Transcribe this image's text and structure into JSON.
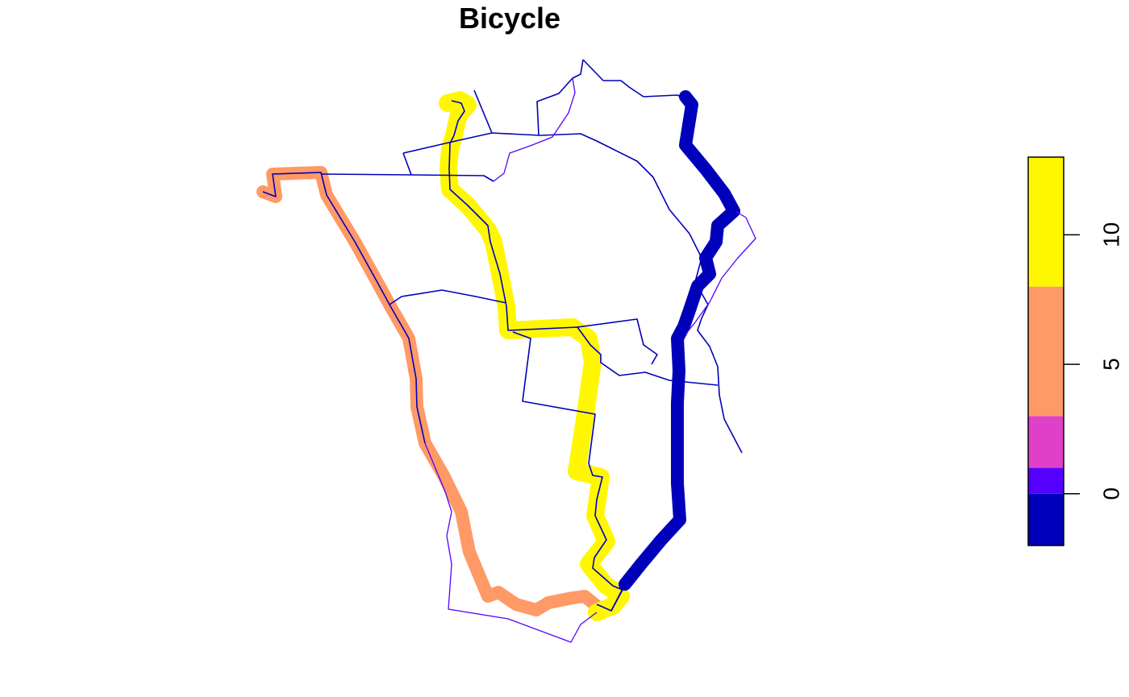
{
  "title": "Bicycle",
  "legend": {
    "ticks": [
      {
        "value": 0,
        "label": "0"
      },
      {
        "value": 5,
        "label": "5"
      },
      {
        "value": 10,
        "label": "10"
      }
    ],
    "bins": [
      {
        "from": -2,
        "to": 0,
        "color": "#0000BB"
      },
      {
        "from": 0,
        "to": 1,
        "color": "#5500FF"
      },
      {
        "from": 1,
        "to": 3,
        "color": "#E040C8"
      },
      {
        "from": 3,
        "to": 8,
        "color": "#FF9966"
      },
      {
        "from": 8,
        "to": 13,
        "color": "#FFF700"
      }
    ]
  },
  "colors": {
    "network_line": "#0000BB",
    "thin_purple": "#5500FF",
    "route_yellow": "#FFF700",
    "route_orange": "#FF9966",
    "route_blue": "#0000BB"
  }
}
